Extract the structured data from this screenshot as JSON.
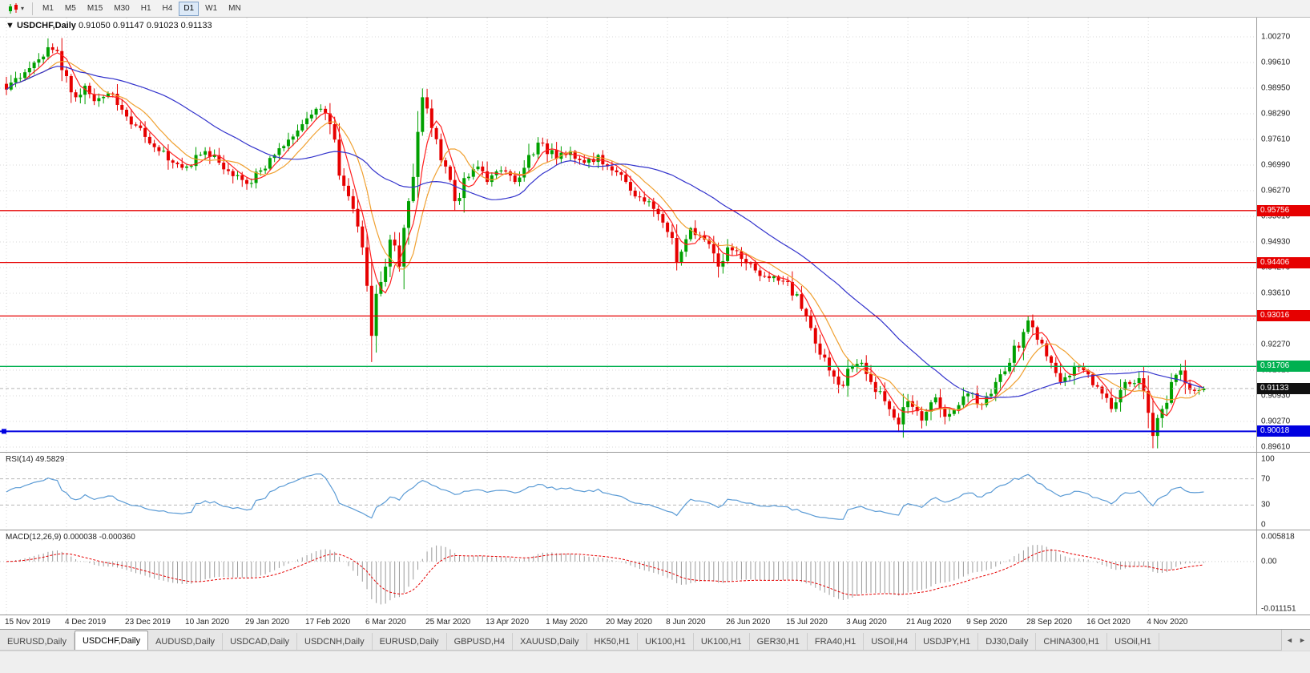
{
  "toolbar": {
    "timeframes": [
      "M1",
      "M5",
      "M15",
      "M30",
      "H1",
      "H4",
      "D1",
      "W1",
      "MN"
    ],
    "active_timeframe": "D1",
    "chart_icon_caret": "▾"
  },
  "chart": {
    "title_marker": "▼",
    "symbol": "USDCHF,Daily",
    "open": "0.91050",
    "high": "0.91147",
    "low": "0.91023",
    "close": "0.91133"
  },
  "chart_data": {
    "type": "candlestick",
    "symbol": "USDCHF",
    "period": "Daily",
    "bars_count": 260,
    "bars_per_date_label": 13,
    "y_axis_ticks": [
      "1.00270",
      "0.99610",
      "0.98950",
      "0.98290",
      "0.97610",
      "0.96990",
      "0.96270",
      "0.95610",
      "0.94930",
      "0.94270",
      "0.93610",
      "0.92950",
      "0.92270",
      "0.91610",
      "0.90930",
      "0.90270",
      "0.89610"
    ],
    "y_axis_range": {
      "top": 1.0027,
      "bottom": 0.8961
    },
    "x_axis_dates": [
      "15 Nov 2019",
      "4 Dec 2019",
      "23 Dec 2019",
      "10 Jan 2020",
      "29 Jan 2020",
      "17 Feb 2020",
      "6 Mar 2020",
      "25 Mar 2020",
      "13 Apr 2020",
      "1 May 2020",
      "20 May 2020",
      "8 Jun 2020",
      "26 Jun 2020",
      "15 Jul 2020",
      "3 Aug 2020",
      "21 Aug 2020",
      "9 Sep 2020",
      "28 Sep 2020",
      "16 Oct 2020",
      "4 Nov 2020"
    ],
    "price_anchors": [
      [
        0,
        0.989
      ],
      [
        2,
        0.992
      ],
      [
        4,
        0.9935
      ],
      [
        6,
        0.996
      ],
      [
        9,
        1.0
      ],
      [
        11,
        0.999
      ],
      [
        13,
        0.9925
      ],
      [
        15,
        0.987
      ],
      [
        17,
        0.99
      ],
      [
        19,
        0.986
      ],
      [
        22,
        0.988
      ],
      [
        24,
        0.985
      ],
      [
        26,
        0.982
      ],
      [
        29,
        0.979
      ],
      [
        31,
        0.975
      ],
      [
        33,
        0.973
      ],
      [
        36,
        0.97
      ],
      [
        39,
        0.969
      ],
      [
        41,
        0.972
      ],
      [
        43,
        0.973
      ],
      [
        46,
        0.97
      ],
      [
        49,
        0.9665
      ],
      [
        52,
        0.9645
      ],
      [
        55,
        0.968
      ],
      [
        58,
        0.972
      ],
      [
        61,
        0.976
      ],
      [
        64,
        0.98
      ],
      [
        66,
        0.9825
      ],
      [
        68,
        0.984
      ],
      [
        70,
        0.98
      ],
      [
        71,
        0.976
      ],
      [
        73,
        0.964
      ],
      [
        75,
        0.958
      ],
      [
        77,
        0.948
      ],
      [
        78,
        0.938
      ],
      [
        79,
        0.925
      ],
      [
        81,
        0.939
      ],
      [
        83,
        0.95
      ],
      [
        85,
        0.943
      ],
      [
        87,
        0.96
      ],
      [
        89,
        0.978
      ],
      [
        90,
        0.987
      ],
      [
        92,
        0.979
      ],
      [
        95,
        0.969
      ],
      [
        97,
        0.96
      ],
      [
        99,
        0.966
      ],
      [
        102,
        0.969
      ],
      [
        104,
        0.965
      ],
      [
        107,
        0.968
      ],
      [
        110,
        0.965
      ],
      [
        113,
        0.972
      ],
      [
        116,
        0.975
      ],
      [
        119,
        0.971
      ],
      [
        122,
        0.973
      ],
      [
        125,
        0.97
      ],
      [
        128,
        0.972
      ],
      [
        131,
        0.968
      ],
      [
        134,
        0.965
      ],
      [
        137,
        0.961
      ],
      [
        140,
        0.958
      ],
      [
        143,
        0.952
      ],
      [
        145,
        0.944
      ],
      [
        148,
        0.953
      ],
      [
        151,
        0.95
      ],
      [
        154,
        0.943
      ],
      [
        156,
        0.948
      ],
      [
        159,
        0.945
      ],
      [
        162,
        0.942
      ],
      [
        165,
        0.94
      ],
      [
        169,
        0.939
      ],
      [
        172,
        0.932
      ],
      [
        175,
        0.923
      ],
      [
        178,
        0.916
      ],
      [
        181,
        0.912
      ],
      [
        183,
        0.917
      ],
      [
        185,
        0.918
      ],
      [
        187,
        0.913
      ],
      [
        190,
        0.908
      ],
      [
        193,
        0.902
      ],
      [
        195,
        0.908
      ],
      [
        198,
        0.903
      ],
      [
        201,
        0.909
      ],
      [
        203,
        0.904
      ],
      [
        206,
        0.907
      ],
      [
        208,
        0.91
      ],
      [
        211,
        0.907
      ],
      [
        214,
        0.913
      ],
      [
        217,
        0.918
      ],
      [
        220,
        0.926
      ],
      [
        221,
        0.929
      ],
      [
        223,
        0.924
      ],
      [
        226,
        0.918
      ],
      [
        228,
        0.913
      ],
      [
        231,
        0.917
      ],
      [
        234,
        0.915
      ],
      [
        237,
        0.91
      ],
      [
        239,
        0.906
      ],
      [
        242,
        0.913
      ],
      [
        245,
        0.914
      ],
      [
        247,
        0.905
      ],
      [
        248,
        0.899
      ],
      [
        250,
        0.906
      ],
      [
        252,
        0.913
      ],
      [
        254,
        0.916
      ],
      [
        256,
        0.911
      ],
      [
        259,
        0.91133
      ]
    ],
    "wick_extremes": [
      {
        "i": 9,
        "h": 1.0023
      },
      {
        "i": 79,
        "l": 0.9182
      },
      {
        "i": 90,
        "h": 0.9893
      },
      {
        "i": 145,
        "l": 0.942
      },
      {
        "i": 193,
        "l": 0.9
      },
      {
        "i": 221,
        "h": 0.9302
      },
      {
        "i": 248,
        "l": 0.8958
      }
    ],
    "levels": [
      {
        "price": "0.95756",
        "value": 0.95756,
        "color": "#e60000"
      },
      {
        "price": "0.94406",
        "value": 0.94406,
        "color": "#e60000"
      },
      {
        "price": "0.93016",
        "value": 0.93016,
        "color": "#e60000"
      },
      {
        "price": "0.91706",
        "value": 0.91706,
        "color": "#00b050"
      },
      {
        "price": "0.90018",
        "value": 0.90018,
        "color": "#0000e0",
        "width": 2,
        "handle": true
      }
    ],
    "current_price": {
      "label": "0.91133",
      "value": 0.91133,
      "bg": "#111111"
    },
    "up_color": "#00a000",
    "down_color": "#e60000",
    "moving_averages": [
      {
        "period": 5,
        "color": "#ff2020"
      },
      {
        "period": 10,
        "color": "#f0a030"
      },
      {
        "period": 34,
        "color": "#3333cc"
      }
    ],
    "rsi": {
      "label": "RSI(14)",
      "value": "49.5829",
      "period": 14,
      "color": "#5b9bd5",
      "axis": [
        "100",
        "70",
        "30",
        "0"
      ],
      "axis_values": [
        100,
        70,
        30,
        0
      ],
      "levels": [
        70,
        30
      ]
    },
    "macd": {
      "label": "MACD(12,26,9)",
      "value_macd": "0.000038",
      "value_signal": "-0.000360",
      "fast": 12,
      "slow": 26,
      "signal": 9,
      "axis": [
        "0.005818",
        "0.00",
        "-0.011151"
      ],
      "axis_values": [
        0.005818,
        0,
        -0.011151
      ],
      "range": [
        -0.011151,
        0.005818
      ],
      "histogram_color": "#9a9a9a",
      "signal_color": "#e60000"
    }
  },
  "tabs": {
    "items": [
      "EURUSD,Daily",
      "USDCHF,Daily",
      "AUDUSD,Daily",
      "USDCAD,Daily",
      "USDCNH,Daily",
      "EURUSD,Daily",
      "GBPUSD,H4",
      "XAUUSD,Daily",
      "HK50,H1",
      "UK100,H1",
      "UK100,H1",
      "GER30,H1",
      "FRA40,H1",
      "USOil,H4",
      "USDJPY,H1",
      "DJ30,Daily",
      "CHINA300,H1",
      "USOil,H1"
    ],
    "active_index": 1,
    "scroll_left": "◄",
    "scroll_right": "►"
  }
}
